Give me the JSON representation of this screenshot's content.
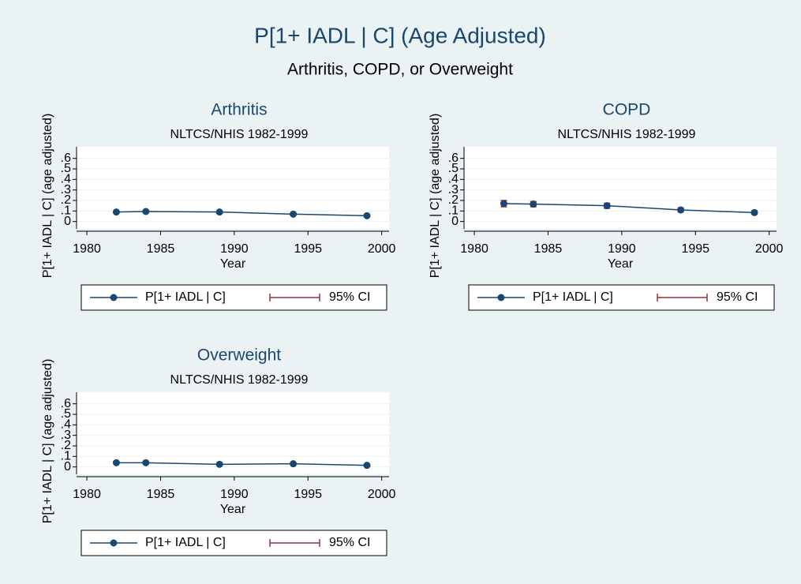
{
  "title": "P[1+ IADL | C] (Age Adjusted)",
  "subtitle": "Arthritis, COPD, or Overweight",
  "chart_data": [
    {
      "type": "line",
      "title": "Arthritis",
      "subtitle": "NLTCS/NHIS 1982-1999",
      "x_label": "Year",
      "y_label": "P[1+ IADL | C] (age adjusted)",
      "x": [
        1982,
        1984,
        1989,
        1994,
        1999
      ],
      "series": [
        {
          "name": "P[1+ IADL | C]",
          "color": "#1a476f",
          "values": [
            0.09,
            0.095,
            0.09,
            0.07,
            0.055
          ],
          "errors": [
            0.01,
            0.01,
            0.01,
            0.008,
            0.008
          ],
          "error_name": "95% CI",
          "error_color": "#90353b"
        }
      ],
      "xlim": [
        1979.3,
        2000.5
      ],
      "xticks": [
        1980,
        1985,
        1990,
        1995,
        2000
      ],
      "ylim": [
        -0.07,
        0.71
      ],
      "yticks": [
        0,
        {
          "value": 0.1,
          "label": ".1"
        },
        {
          "value": 0.2,
          "label": ".2"
        },
        {
          "value": 0.3,
          "label": ".3"
        },
        {
          "value": 0.4,
          "label": ".4"
        },
        {
          "value": 0.5,
          "label": ".5"
        },
        {
          "value": 0.6,
          "label": ".6"
        }
      ],
      "grid": true
    },
    {
      "type": "line",
      "title": "COPD",
      "subtitle": "NLTCS/NHIS 1982-1999",
      "x_label": "Year",
      "y_label": "P[1+ IADL | C] (age adjusted)",
      "x": [
        1982,
        1984,
        1989,
        1994,
        1999
      ],
      "series": [
        {
          "name": "P[1+ IADL | C]",
          "color": "#1a476f",
          "values": [
            0.17,
            0.165,
            0.15,
            0.11,
            0.085
          ],
          "errors": [
            0.03,
            0.025,
            0.025,
            0.02,
            0.015
          ],
          "error_name": "95% CI",
          "error_color": "#90353b"
        }
      ],
      "xlim": [
        1979.3,
        2000.5
      ],
      "xticks": [
        1980,
        1985,
        1990,
        1995,
        2000
      ],
      "ylim": [
        -0.07,
        0.71
      ],
      "yticks": [
        0,
        {
          "value": 0.1,
          "label": ".1"
        },
        {
          "value": 0.2,
          "label": ".2"
        },
        {
          "value": 0.3,
          "label": ".3"
        },
        {
          "value": 0.4,
          "label": ".4"
        },
        {
          "value": 0.5,
          "label": ".5"
        },
        {
          "value": 0.6,
          "label": ".6"
        }
      ],
      "grid": true
    },
    {
      "type": "line",
      "title": "Overweight",
      "subtitle": "NLTCS/NHIS 1982-1999",
      "x_label": "Year",
      "y_label": "P[1+ IADL | C] (age adjusted)",
      "x": [
        1982,
        1984,
        1989,
        1994,
        1999
      ],
      "series": [
        {
          "name": "P[1+ IADL | C]",
          "color": "#1a476f",
          "values": [
            0.04,
            0.04,
            0.025,
            0.03,
            0.015
          ],
          "errors": [
            0.008,
            0.008,
            0.006,
            0.006,
            0.006
          ],
          "error_name": "95% CI",
          "error_color": "#90353b"
        }
      ],
      "xlim": [
        1979.3,
        2000.5
      ],
      "xticks": [
        1980,
        1985,
        1990,
        1995,
        2000
      ],
      "ylim": [
        -0.07,
        0.71
      ],
      "yticks": [
        0,
        {
          "value": 0.1,
          "label": ".1"
        },
        {
          "value": 0.2,
          "label": ".2"
        },
        {
          "value": 0.3,
          "label": ".3"
        },
        {
          "value": 0.4,
          "label": ".4"
        },
        {
          "value": 0.5,
          "label": ".5"
        },
        {
          "value": 0.6,
          "label": ".6"
        }
      ],
      "grid": true
    }
  ]
}
